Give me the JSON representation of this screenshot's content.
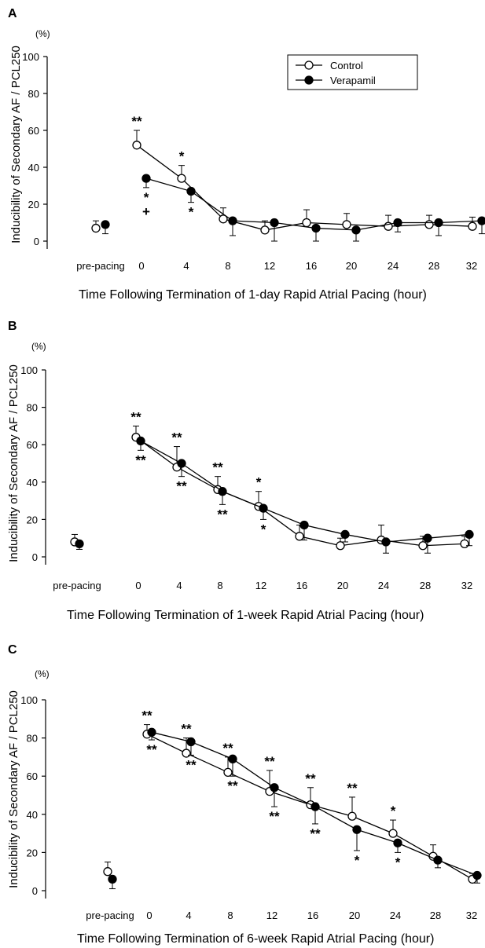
{
  "chart_data": [
    {
      "type": "line",
      "panel": "A",
      "unit": "(%)",
      "xlabel": "Time Following Termination of 1-day Rapid Atrial Pacing (hour)",
      "ylabel": "Inducibility of Secondary AF / PCL250",
      "ylim": [
        0,
        100
      ],
      "yticks": [
        0,
        20,
        40,
        60,
        80,
        100
      ],
      "categories": [
        "pre-pacing",
        "0",
        "4",
        "8",
        "12",
        "16",
        "20",
        "24",
        "28",
        "32"
      ],
      "legend": {
        "position": "top-right",
        "entries": [
          "Control",
          "Verapamil"
        ]
      },
      "series": [
        {
          "name": "Control",
          "marker": "open-circle",
          "values": [
            7,
            52,
            34,
            12,
            6,
            10,
            9,
            8,
            9,
            8
          ],
          "errors": [
            4,
            8,
            7,
            6,
            5,
            7,
            6,
            6,
            5,
            5
          ]
        },
        {
          "name": "Verapamil",
          "marker": "filled-circle",
          "values": [
            9,
            34,
            27,
            11,
            10,
            7,
            6,
            10,
            10,
            11
          ],
          "errors": [
            5,
            5,
            6,
            8,
            10,
            7,
            6,
            5,
            7,
            7
          ]
        }
      ],
      "annotations": [
        {
          "series": "Control",
          "category": "0",
          "side": "above",
          "text": "**"
        },
        {
          "series": "Control",
          "category": "4",
          "side": "above",
          "text": "*"
        },
        {
          "series": "Verapamil",
          "category": "0",
          "side": "below",
          "text": "*"
        },
        {
          "series": "Verapamil",
          "category": "0",
          "side": "below2",
          "text": "+"
        },
        {
          "series": "Verapamil",
          "category": "4",
          "side": "below",
          "text": "*"
        }
      ]
    },
    {
      "type": "line",
      "panel": "B",
      "unit": "(%)",
      "xlabel": "Time Following Termination of 1-week Rapid Atrial Pacing (hour)",
      "ylabel": "Inducibility of Secondary AF / PCL250",
      "ylim": [
        0,
        100
      ],
      "yticks": [
        0,
        20,
        40,
        60,
        80,
        100
      ],
      "categories": [
        "pre-pacing",
        "0",
        "4",
        "8",
        "12",
        "16",
        "20",
        "24",
        "28",
        "32"
      ],
      "series": [
        {
          "name": "Control",
          "marker": "open-circle",
          "values": [
            8,
            64,
            48,
            36,
            27,
            11,
            6,
            9,
            6,
            7
          ],
          "errors": [
            4,
            6,
            11,
            7,
            8,
            6,
            4,
            8,
            5,
            4
          ]
        },
        {
          "name": "Verapamil",
          "marker": "filled-circle",
          "values": [
            7,
            62,
            50,
            35,
            26,
            17,
            12,
            8,
            10,
            12
          ],
          "errors": [
            3,
            5,
            7,
            7,
            6,
            8,
            4,
            6,
            8,
            6
          ]
        }
      ],
      "annotations": [
        {
          "series": "Control",
          "category": "0",
          "side": "above",
          "text": "**"
        },
        {
          "series": "Control",
          "category": "4",
          "side": "above",
          "text": "**"
        },
        {
          "series": "Control",
          "category": "8",
          "side": "above",
          "text": "**"
        },
        {
          "series": "Control",
          "category": "12",
          "side": "above",
          "text": "*"
        },
        {
          "series": "Verapamil",
          "category": "0",
          "side": "below",
          "text": "**"
        },
        {
          "series": "Verapamil",
          "category": "4",
          "side": "below",
          "text": "**"
        },
        {
          "series": "Verapamil",
          "category": "8",
          "side": "below",
          "text": "**"
        },
        {
          "series": "Verapamil",
          "category": "12",
          "side": "below",
          "text": "*"
        }
      ]
    },
    {
      "type": "line",
      "panel": "C",
      "unit": "(%)",
      "xlabel": "Time Following Termination of 6-week Rapid Atrial Pacing (hour)",
      "ylabel": "Inducibility of Secondary AF / PCL250",
      "ylim": [
        0,
        100
      ],
      "yticks": [
        0,
        20,
        40,
        60,
        80,
        100
      ],
      "categories": [
        "pre-pacing",
        "0",
        "4",
        "8",
        "12",
        "16",
        "20",
        "24",
        "28",
        "32"
      ],
      "series": [
        {
          "name": "Control",
          "marker": "open-circle",
          "values": [
            10,
            82,
            72,
            62,
            52,
            45,
            39,
            30,
            18,
            6
          ],
          "errors": [
            5,
            5,
            8,
            8,
            11,
            9,
            10,
            7,
            6,
            3
          ]
        },
        {
          "name": "Verapamil",
          "marker": "filled-circle",
          "values": [
            6,
            83,
            78,
            69,
            54,
            44,
            32,
            25,
            16,
            8
          ],
          "errors": [
            5,
            4,
            7,
            9,
            10,
            9,
            11,
            5,
            4,
            4
          ]
        }
      ],
      "annotations": [
        {
          "series": "Control",
          "category": "0",
          "side": "above",
          "text": "**"
        },
        {
          "series": "Control",
          "category": "4",
          "side": "above",
          "text": "**"
        },
        {
          "series": "Control",
          "category": "8",
          "side": "above",
          "text": "**"
        },
        {
          "series": "Control",
          "category": "12",
          "side": "above",
          "text": "**"
        },
        {
          "series": "Control",
          "category": "16",
          "side": "above",
          "text": "**"
        },
        {
          "series": "Control",
          "category": "20",
          "side": "above",
          "text": "**"
        },
        {
          "series": "Control",
          "category": "24",
          "side": "above",
          "text": "*"
        },
        {
          "series": "Verapamil",
          "category": "0",
          "side": "below",
          "text": "**"
        },
        {
          "series": "Verapamil",
          "category": "4",
          "side": "below",
          "text": "**"
        },
        {
          "series": "Verapamil",
          "category": "8",
          "side": "below",
          "text": "**"
        },
        {
          "series": "Verapamil",
          "category": "12",
          "side": "below",
          "text": "**"
        },
        {
          "series": "Verapamil",
          "category": "16",
          "side": "below",
          "text": "**"
        },
        {
          "series": "Verapamil",
          "category": "20",
          "side": "below",
          "text": "*"
        },
        {
          "series": "Verapamil",
          "category": "24",
          "side": "below",
          "text": "*"
        }
      ]
    }
  ]
}
